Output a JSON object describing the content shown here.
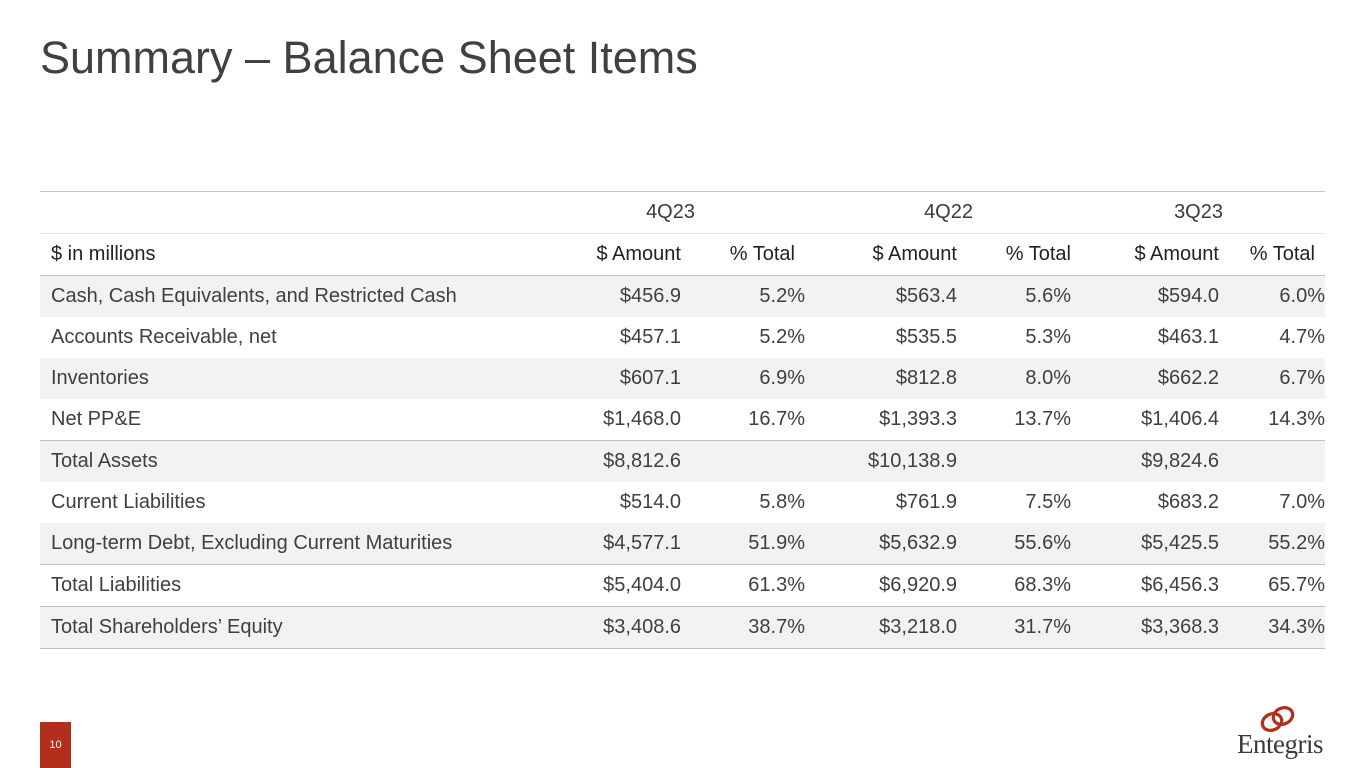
{
  "slide": {
    "title": "Summary – Balance Sheet Items",
    "page_number": "10",
    "logo_text": "Entegris"
  },
  "table": {
    "periods": [
      "4Q23",
      "4Q22",
      "3Q23"
    ],
    "row_header": "$ in millions",
    "amount_header": "$ Amount",
    "percent_header": "% Total",
    "rows": [
      {
        "label": "Cash, Cash Equivalents, and Restricted Cash",
        "values": [
          "$456.9",
          "5.2%",
          "$563.4",
          "5.6%",
          "$594.0",
          "6.0%"
        ]
      },
      {
        "label": "Accounts Receivable, net",
        "values": [
          "$457.1",
          "5.2%",
          "$535.5",
          "5.3%",
          "$463.1",
          "4.7%"
        ]
      },
      {
        "label": "Inventories",
        "values": [
          "$607.1",
          "6.9%",
          "$812.8",
          "8.0%",
          "$662.2",
          "6.7%"
        ]
      },
      {
        "label": "Net PP&E",
        "values": [
          "$1,468.0",
          "16.7%",
          "$1,393.3",
          "13.7%",
          "$1,406.4",
          "14.3%"
        ]
      },
      {
        "label": "Total Assets",
        "values": [
          "$8,812.6",
          "",
          "$10,138.9",
          "",
          "$9,824.6",
          ""
        ]
      },
      {
        "label": "Current Liabilities",
        "values": [
          "$514.0",
          "5.8%",
          "$761.9",
          "7.5%",
          "$683.2",
          "7.0%"
        ]
      },
      {
        "label": "Long-term Debt, Excluding Current Maturities",
        "values": [
          "$4,577.1",
          "51.9%",
          "$5,632.9",
          "55.6%",
          "$5,425.5",
          "55.2%"
        ]
      },
      {
        "label": "Total Liabilities",
        "values": [
          "$5,404.0",
          "61.3%",
          "$6,920.9",
          "68.3%",
          "$6,456.3",
          "65.7%"
        ]
      },
      {
        "label": "Total Shareholders’ Equity",
        "values": [
          "$3,408.6",
          "38.7%",
          "$3,218.0",
          "31.7%",
          "$3,368.3",
          "34.3%"
        ]
      }
    ]
  },
  "colors": {
    "accent": "#b22f1c",
    "row_shade": "#f2f2f2",
    "rule": "#bfbfbf"
  }
}
